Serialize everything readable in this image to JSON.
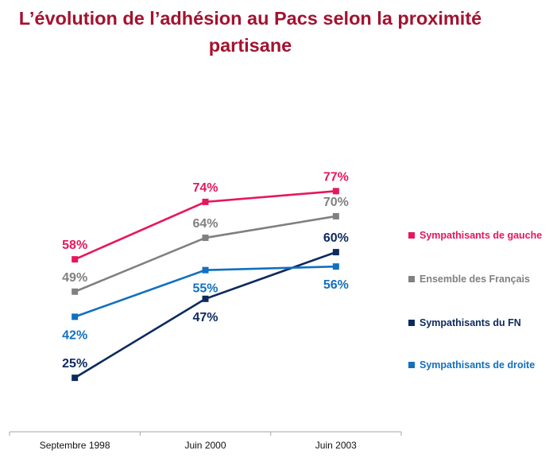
{
  "chart_data": {
    "type": "line",
    "title": "L’évolution de l’adhésion au Pacs selon la proximité partisane",
    "title_lines": [
      "L’évolution de l’adhésion au Pacs selon la proximité",
      "partisane"
    ],
    "categories": [
      "Septembre 1998",
      "Juin 2000",
      "Juin 2003"
    ],
    "xlabel": "",
    "ylabel": "",
    "ylim": [
      0,
      100
    ],
    "grid": false,
    "legend_position": "right",
    "value_suffix": "%",
    "series": [
      {
        "name": "Sympathisants de gauche",
        "color": "#E6175C",
        "values": [
          58,
          74,
          77
        ],
        "label_pos": [
          "above",
          "above",
          "above"
        ]
      },
      {
        "name": "Ensemble des Français",
        "color": "#808080",
        "values": [
          49,
          64,
          70
        ],
        "label_pos": [
          "above",
          "above",
          "above"
        ]
      },
      {
        "name": "Sympathisants du FN",
        "color": "#0D2A5E",
        "values": [
          25,
          47,
          60
        ],
        "label_pos": [
          "above",
          "below",
          "above"
        ]
      },
      {
        "name": "Sympathisants de droite",
        "color": "#1170C0",
        "values": [
          42,
          55,
          56
        ],
        "label_pos": [
          "below",
          "below",
          "below"
        ]
      }
    ],
    "title_color": "#A3122F"
  }
}
